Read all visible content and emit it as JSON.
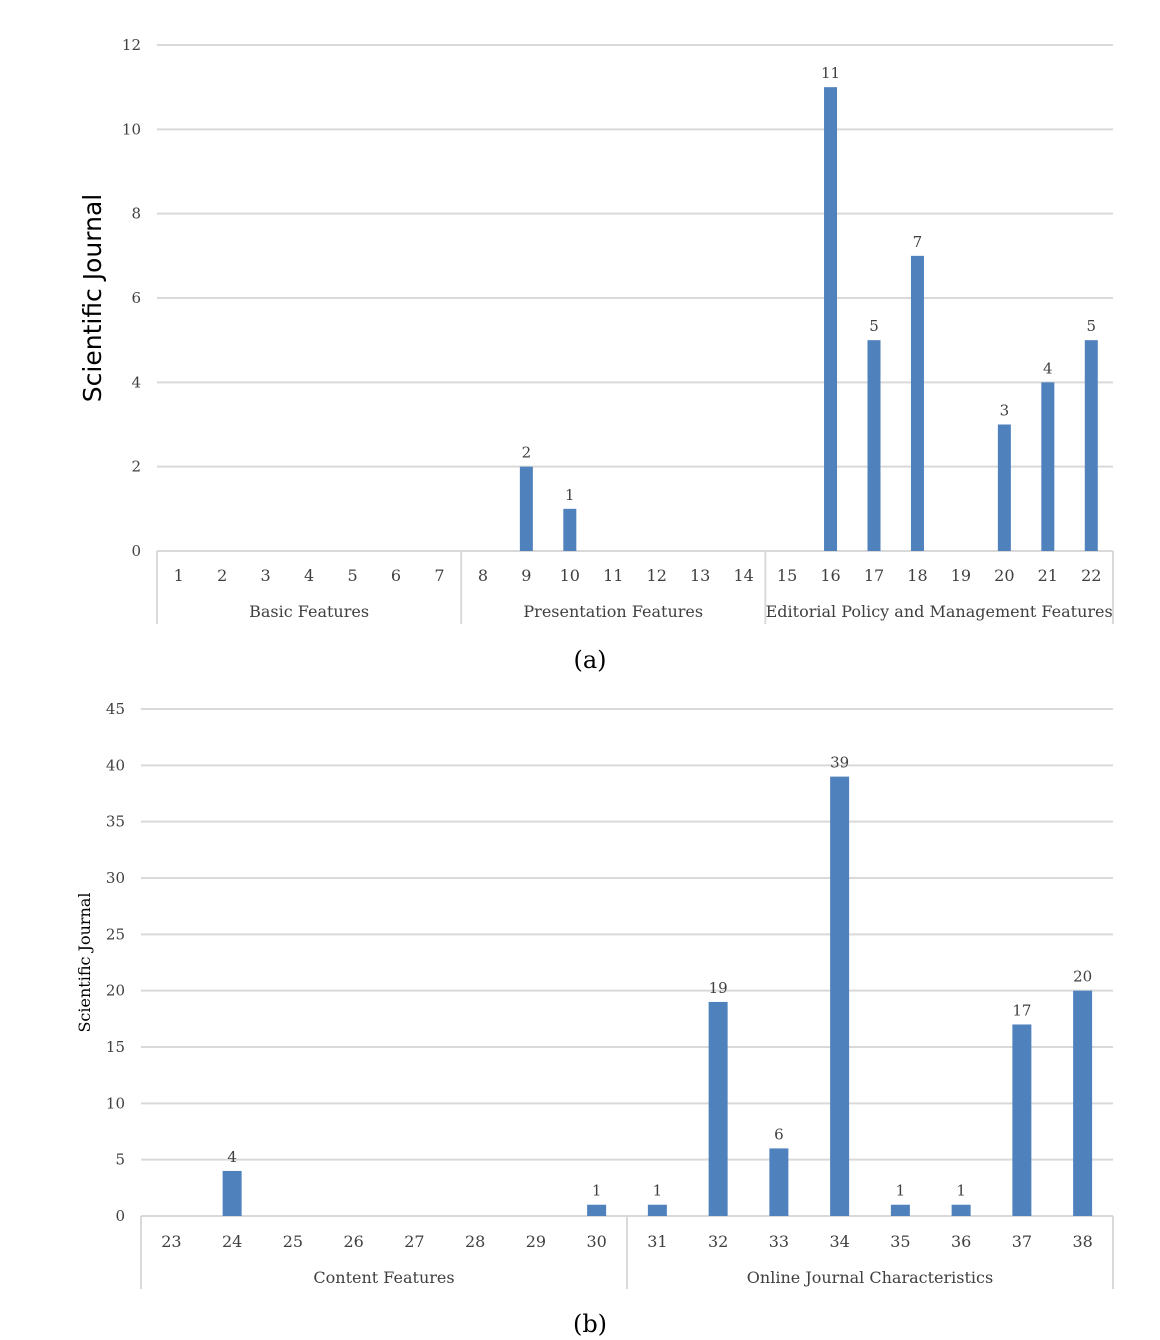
{
  "chart_data": [
    {
      "type": "bar",
      "caption": "(a)",
      "ylabel": "Scientific Journal",
      "ylim": [
        0,
        12
      ],
      "yticks": [
        0,
        2,
        4,
        6,
        8,
        10,
        12
      ],
      "categories": [
        "1",
        "2",
        "3",
        "4",
        "5",
        "6",
        "7",
        "8",
        "9",
        "10",
        "11",
        "12",
        "13",
        "14",
        "15",
        "16",
        "17",
        "18",
        "19",
        "20",
        "21",
        "22"
      ],
      "values": [
        0,
        0,
        0,
        0,
        0,
        0,
        0,
        0,
        2,
        1,
        0,
        0,
        0,
        0,
        0,
        11,
        5,
        7,
        0,
        3,
        4,
        5
      ],
      "groups": [
        {
          "name": "Basic Features",
          "count": 7
        },
        {
          "name": "Presentation Features",
          "count": 7
        },
        {
          "name": "Editorial Policy and Management Features",
          "count": 8
        }
      ],
      "grid": true,
      "bar_color": "#4f81bd"
    },
    {
      "type": "bar",
      "caption": "(b)",
      "ylabel": "Scientific Journal",
      "ylim": [
        0,
        45
      ],
      "yticks": [
        0,
        5,
        10,
        15,
        20,
        25,
        30,
        35,
        40,
        45
      ],
      "categories": [
        "23",
        "24",
        "25",
        "26",
        "27",
        "28",
        "29",
        "30",
        "31",
        "32",
        "33",
        "34",
        "35",
        "36",
        "37",
        "38"
      ],
      "values": [
        0,
        4,
        0,
        0,
        0,
        0,
        0,
        1,
        1,
        19,
        6,
        39,
        1,
        1,
        17,
        20
      ],
      "groups": [
        {
          "name": "Content Features",
          "count": 8
        },
        {
          "name": "Online Journal Characteristics",
          "count": 8
        }
      ],
      "grid": true,
      "bar_color": "#4f81bd"
    }
  ]
}
